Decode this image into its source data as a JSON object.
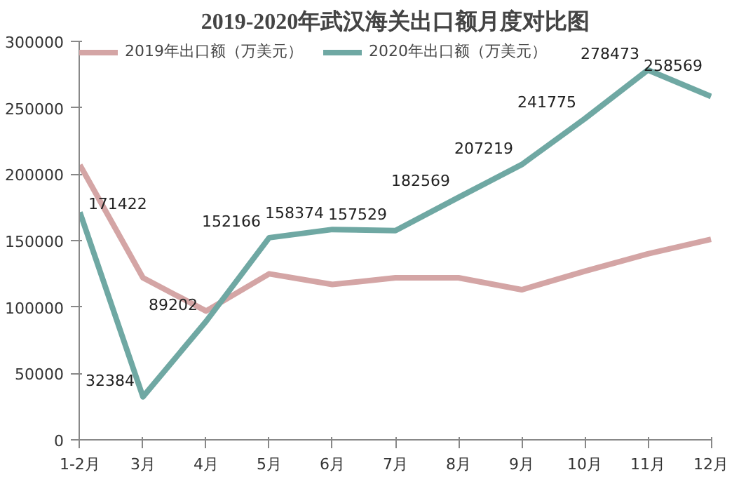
{
  "chart_data": {
    "type": "line",
    "title": "2019-2020年武汉海关出口额月度对比图",
    "categories": [
      "1-2月",
      "3月",
      "4月",
      "5月",
      "6月",
      "7月",
      "8月",
      "9月",
      "10月",
      "11月",
      "12月"
    ],
    "series": [
      {
        "name": "2019年出口额（万美元）",
        "color": "#d4a5a5",
        "values": [
          207000,
          122000,
          97000,
          125000,
          117000,
          122000,
          122000,
          113000,
          127000,
          140000,
          151000
        ]
      },
      {
        "name": "2020年出口额（万美元）",
        "color": "#6fa8a3",
        "values": [
          171422,
          32384,
          89202,
          152166,
          158374,
          157529,
          182569,
          207219,
          241775,
          278473,
          258569
        ],
        "value_labels": [
          "171422",
          "32384",
          "89202",
          "152166",
          "158374",
          "157529",
          "182569",
          "207219",
          "241775",
          "278473",
          "258569"
        ]
      }
    ],
    "ylim": [
      0,
      300000
    ],
    "yticks": [
      0,
      50000,
      100000,
      150000,
      200000,
      250000,
      300000
    ],
    "grid": false,
    "legend": "top",
    "marker": "none",
    "line_style": "solid"
  }
}
